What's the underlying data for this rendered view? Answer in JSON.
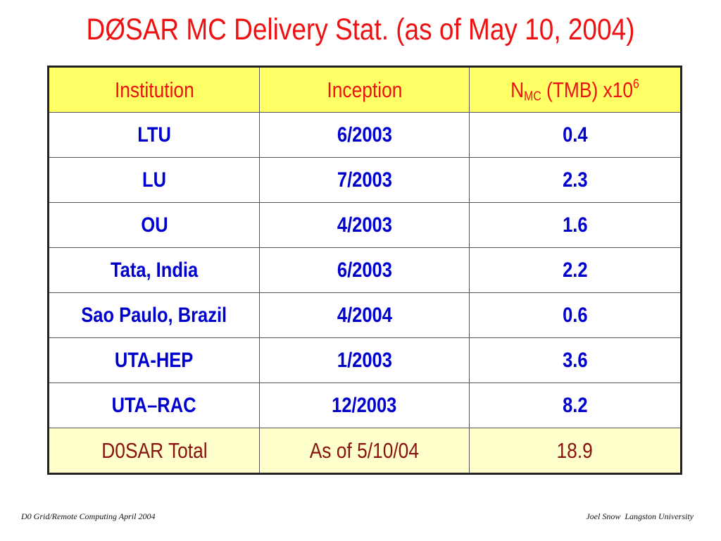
{
  "slide": {
    "title": "DØSAR MC Delivery Stat. (as of May 10, 2004)"
  },
  "table": {
    "headers": {
      "institution": "Institution",
      "inception": "Inception",
      "nmc_main": "N",
      "nmc_sub": "MC",
      "nmc_mid": " (TMB) x10",
      "nmc_sup": "6"
    },
    "rows": [
      {
        "institution": "LTU",
        "inception": "6/2003",
        "nmc": "0.4"
      },
      {
        "institution": "LU",
        "inception": "7/2003",
        "nmc": "2.3"
      },
      {
        "institution": "OU",
        "inception": "4/2003",
        "nmc": "1.6"
      },
      {
        "institution": "Tata, India",
        "inception": "6/2003",
        "nmc": "2.2"
      },
      {
        "institution": "Sao Paulo, Brazil",
        "inception": "4/2004",
        "nmc": "0.6"
      },
      {
        "institution": "UTA-HEP",
        "inception": "1/2003",
        "nmc": "3.6"
      },
      {
        "institution": "UTA–RAC",
        "inception": "12/2003",
        "nmc": "8.2"
      }
    ],
    "total": {
      "institution": "D0SAR Total",
      "inception": "As of 5/10/04",
      "nmc": "18.9"
    }
  },
  "footer": {
    "left": "D0 Grid/Remote Computing April 2004",
    "right": "Joel Snow  Langston University"
  },
  "colors": {
    "title": "#ee1111",
    "header_bg": "#ffff66",
    "body_text": "#0000cc",
    "total_bg": "#ffffcc",
    "total_text": "#881111"
  }
}
